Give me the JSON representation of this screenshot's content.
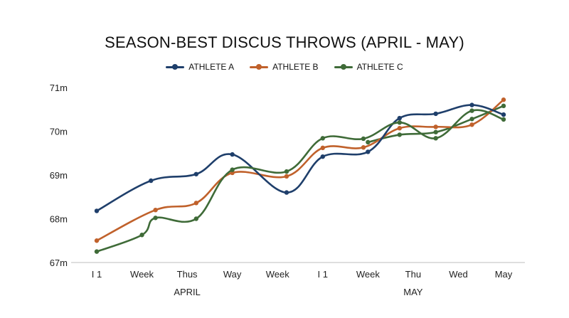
{
  "chart_data": {
    "type": "line",
    "title": "SEASON-BEST DISCUS THROWS (APRIL - MAY)",
    "xlabel": "",
    "ylabel": "",
    "categories": [
      "I 1",
      "Week",
      "Thus",
      "Way",
      "Week",
      "I 1",
      "Week",
      "Thu",
      "Wed",
      "May"
    ],
    "group_labels": [
      "APRIL",
      "MAY"
    ],
    "y_ticks": [
      "67m",
      "68m",
      "69m",
      "70m",
      "71m"
    ],
    "ylim": [
      67,
      71
    ],
    "grid": false,
    "legend_position": "top",
    "series": [
      {
        "name": "ATHLETE A",
        "color": "#1f3f6b",
        "x": [
          0,
          1.2,
          2.2,
          3,
          4.2,
          5,
          6,
          6.7,
          7.5,
          8.3,
          9
        ],
        "values": [
          68.18,
          68.87,
          69.02,
          69.47,
          68.6,
          69.42,
          69.53,
          70.3,
          70.4,
          70.6,
          70.38
        ]
      },
      {
        "name": "ATHLETE B",
        "color": "#c0612b",
        "x": [
          0,
          1.3,
          2.2,
          3,
          4.2,
          5,
          5.9,
          6.7,
          7.5,
          8.3,
          9
        ],
        "values": [
          67.5,
          68.2,
          68.36,
          69.05,
          68.97,
          69.62,
          69.63,
          70.07,
          70.1,
          70.15,
          70.72
        ]
      },
      {
        "name": "ATHLETE C",
        "color": "#3f6b38",
        "x": [
          0,
          1,
          1.3,
          2.2,
          3,
          4.2,
          5,
          5.9,
          6.7,
          7.5,
          8.3,
          9
        ],
        "values": [
          67.25,
          67.63,
          68.02,
          68.0,
          69.12,
          69.08,
          69.84,
          69.83,
          70.2,
          69.84,
          70.47,
          70.27
        ]
      },
      {
        "name": "",
        "color": "#3f6b38",
        "x": [
          6,
          6.7,
          7.5,
          8.3,
          9
        ],
        "values": [
          69.75,
          69.92,
          69.98,
          70.28,
          70.58
        ]
      }
    ]
  }
}
